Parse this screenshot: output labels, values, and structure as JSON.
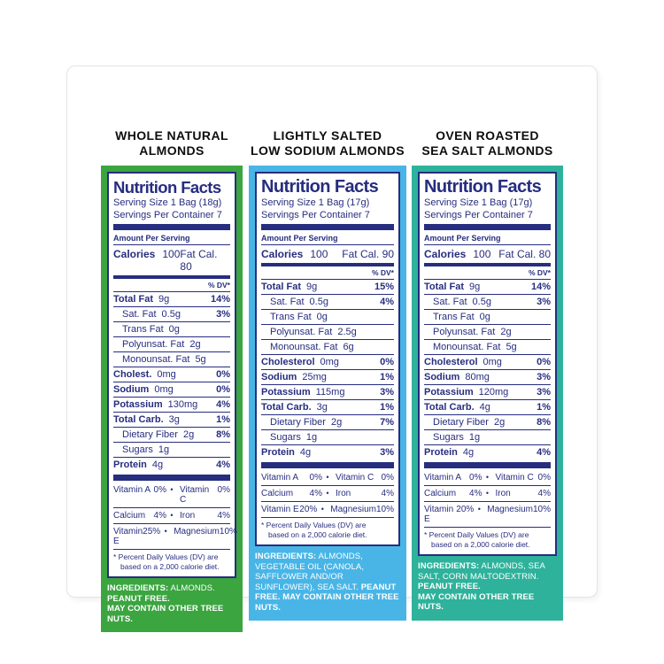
{
  "colors": {
    "navy_text": "#272d7f",
    "green_accent": "#3ba540",
    "blue_accent": "#49b5e7",
    "teal_accent": "#2eb29c",
    "title_black": "#0e0e0e",
    "card_border": "#e4e4e4"
  },
  "shared": {
    "nutrition_facts_heading": "Nutrition Facts",
    "amount_per_serving": "Amount Per Serving",
    "percent_dv_header": "% DV*",
    "calories_label": "Calories",
    "bullet": "•",
    "footnote": "* Percent Daily Values (DV) are\nbased on a 2,000 calorie diet."
  },
  "panels": [
    {
      "title_lines": [
        "WHOLE NATURAL",
        "ALMONDS"
      ],
      "accent_color": "#3ba540",
      "serving_size": "Serving Size 1 Bag (18g)",
      "servings_per_container": "Servings Per Container 7",
      "calories_value": "100",
      "fat_calories": "Fat Cal. 80",
      "nutrients": [
        {
          "label": "Total Fat",
          "amount": "9g",
          "dv": "14%",
          "bold": true,
          "indent": false
        },
        {
          "label": "Sat. Fat",
          "amount": "0.5g",
          "dv": "3%",
          "bold": false,
          "indent": true
        },
        {
          "label": "Trans Fat",
          "amount": "0g",
          "dv": "",
          "bold": false,
          "indent": true
        },
        {
          "label": "Polyunsat. Fat",
          "amount": "2g",
          "dv": "",
          "bold": false,
          "indent": true
        },
        {
          "label": "Monounsat. Fat",
          "amount": "5g",
          "dv": "",
          "bold": false,
          "indent": true
        },
        {
          "label": "Cholest.",
          "amount": "0mg",
          "dv": "0%",
          "bold": true,
          "indent": false
        },
        {
          "label": "Sodium",
          "amount": "0mg",
          "dv": "0%",
          "bold": true,
          "indent": false
        },
        {
          "label": "Potassium",
          "amount": "130mg",
          "dv": "4%",
          "bold": true,
          "indent": false
        },
        {
          "label": "Total Carb.",
          "amount": "3g",
          "dv": "1%",
          "bold": true,
          "indent": false
        },
        {
          "label": "Dietary Fiber",
          "amount": "2g",
          "dv": "8%",
          "bold": false,
          "indent": true
        },
        {
          "label": "Sugars",
          "amount": "1g",
          "dv": "",
          "bold": false,
          "indent": true
        },
        {
          "label": "Protein",
          "amount": "4g",
          "dv": "4%",
          "bold": true,
          "indent": false
        }
      ],
      "vitamins": [
        {
          "n1": "Vitamin A",
          "v1": "0%",
          "n2": "Vitamin C",
          "v2": "0%"
        },
        {
          "n1": "Calcium",
          "v1": "4%",
          "n2": "Iron",
          "v2": "4%"
        },
        {
          "n1": "Vitamin E",
          "v1": "25%",
          "n2": "Magnesium",
          "v2": "10%"
        }
      ],
      "ingredients": [
        {
          "text": "INGREDIENTS:",
          "bold": true
        },
        {
          "text": " ALMONDS.",
          "bold": false
        },
        {
          "text": "\nPEANUT FREE.",
          "bold": true
        },
        {
          "text": "\nMAY CONTAIN OTHER TREE NUTS.",
          "bold": true
        }
      ]
    },
    {
      "title_lines": [
        "LIGHTLY SALTED",
        "LOW SODIUM ALMONDS"
      ],
      "accent_color": "#49b5e7",
      "serving_size": "Serving Size 1 Bag (17g)",
      "servings_per_container": "Servings Per Container 7",
      "calories_value": "100",
      "fat_calories": "Fat Cal. 90",
      "nutrients": [
        {
          "label": "Total Fat",
          "amount": "9g",
          "dv": "15%",
          "bold": true,
          "indent": false
        },
        {
          "label": "Sat. Fat",
          "amount": "0.5g",
          "dv": "4%",
          "bold": false,
          "indent": true
        },
        {
          "label": "Trans Fat",
          "amount": "0g",
          "dv": "",
          "bold": false,
          "indent": true
        },
        {
          "label": "Polyunsat. Fat",
          "amount": "2.5g",
          "dv": "",
          "bold": false,
          "indent": true
        },
        {
          "label": "Monounsat. Fat",
          "amount": "6g",
          "dv": "",
          "bold": false,
          "indent": true
        },
        {
          "label": "Cholesterol",
          "amount": "0mg",
          "dv": "0%",
          "bold": true,
          "indent": false
        },
        {
          "label": "Sodium",
          "amount": "25mg",
          "dv": "1%",
          "bold": true,
          "indent": false
        },
        {
          "label": "Potassium",
          "amount": "115mg",
          "dv": "3%",
          "bold": true,
          "indent": false
        },
        {
          "label": "Total Carb.",
          "amount": "3g",
          "dv": "1%",
          "bold": true,
          "indent": false
        },
        {
          "label": "Dietary Fiber",
          "amount": "2g",
          "dv": "7%",
          "bold": false,
          "indent": true
        },
        {
          "label": "Sugars",
          "amount": "1g",
          "dv": "",
          "bold": false,
          "indent": true
        },
        {
          "label": "Protein",
          "amount": "4g",
          "dv": "3%",
          "bold": true,
          "indent": false
        }
      ],
      "vitamins": [
        {
          "n1": "Vitamin A",
          "v1": "0%",
          "n2": "Vitamin C",
          "v2": "0%"
        },
        {
          "n1": "Calcium",
          "v1": "4%",
          "n2": "Iron",
          "v2": "4%"
        },
        {
          "n1": "Vitamin E",
          "v1": "20%",
          "n2": "Magnesium",
          "v2": "10%"
        }
      ],
      "ingredients": [
        {
          "text": "INGREDIENTS:",
          "bold": true
        },
        {
          "text": " ALMONDS, VEGETABLE OIL (CANOLA, SAFFLOWER AND/OR SUNFLOWER), SEA SALT. ",
          "bold": false
        },
        {
          "text": "PEANUT FREE. MAY CONTAIN OTHER TREE NUTS.",
          "bold": true
        }
      ]
    },
    {
      "title_lines": [
        "OVEN ROASTED",
        "SEA SALT ALMONDS"
      ],
      "accent_color": "#2eb29c",
      "serving_size": "Serving Size 1 Bag (17g)",
      "servings_per_container": "Servings Per Container 7",
      "calories_value": "100",
      "fat_calories": "Fat Cal. 80",
      "nutrients": [
        {
          "label": "Total Fat",
          "amount": "9g",
          "dv": "14%",
          "bold": true,
          "indent": false
        },
        {
          "label": "Sat. Fat",
          "amount": "0.5g",
          "dv": "3%",
          "bold": false,
          "indent": true
        },
        {
          "label": "Trans Fat",
          "amount": "0g",
          "dv": "",
          "bold": false,
          "indent": true
        },
        {
          "label": "Polyunsat. Fat",
          "amount": "2g",
          "dv": "",
          "bold": false,
          "indent": true
        },
        {
          "label": "Monounsat. Fat",
          "amount": "5g",
          "dv": "",
          "bold": false,
          "indent": true
        },
        {
          "label": "Cholesterol",
          "amount": "0mg",
          "dv": "0%",
          "bold": true,
          "indent": false
        },
        {
          "label": "Sodium",
          "amount": "80mg",
          "dv": "3%",
          "bold": true,
          "indent": false
        },
        {
          "label": "Potassium",
          "amount": "120mg",
          "dv": "3%",
          "bold": true,
          "indent": false
        },
        {
          "label": "Total Carb.",
          "amount": "4g",
          "dv": "1%",
          "bold": true,
          "indent": false
        },
        {
          "label": "Dietary Fiber",
          "amount": "2g",
          "dv": "8%",
          "bold": false,
          "indent": true
        },
        {
          "label": "Sugars",
          "amount": "1g",
          "dv": "",
          "bold": false,
          "indent": true
        },
        {
          "label": "Protein",
          "amount": "4g",
          "dv": "4%",
          "bold": true,
          "indent": false
        }
      ],
      "vitamins": [
        {
          "n1": "Vitamin A",
          "v1": "0%",
          "n2": "Vitamin C",
          "v2": "0%"
        },
        {
          "n1": "Calcium",
          "v1": "4%",
          "n2": "Iron",
          "v2": "4%"
        },
        {
          "n1": "Vitamin E",
          "v1": "20%",
          "n2": "Magnesium",
          "v2": "10%"
        }
      ],
      "ingredients": [
        {
          "text": "INGREDIENTS:",
          "bold": true
        },
        {
          "text": " ALMONDS, SEA SALT, CORN MALTODEXTRIN.",
          "bold": false
        },
        {
          "text": "\nPEANUT FREE.",
          "bold": true
        },
        {
          "text": "\nMAY CONTAIN OTHER TREE NUTS.",
          "bold": true
        }
      ]
    }
  ]
}
